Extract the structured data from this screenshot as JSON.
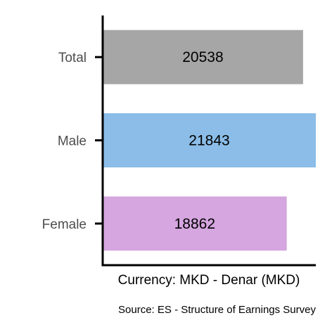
{
  "chart_data": {
    "type": "bar",
    "orientation": "horizontal",
    "categories": [
      "Total",
      "Male",
      "Female"
    ],
    "values": [
      20538,
      21843,
      18862
    ],
    "colors": [
      "#a6a6a6",
      "#8bbde8",
      "#d5a6e0"
    ],
    "xlabel": "Currency: MKD - Denar (MKD)",
    "ylabel": "",
    "caption": "Source:  ES - Structure of Earnings Survey",
    "xlim": [
      0,
      21843
    ],
    "grid": false,
    "value_labels": true
  }
}
